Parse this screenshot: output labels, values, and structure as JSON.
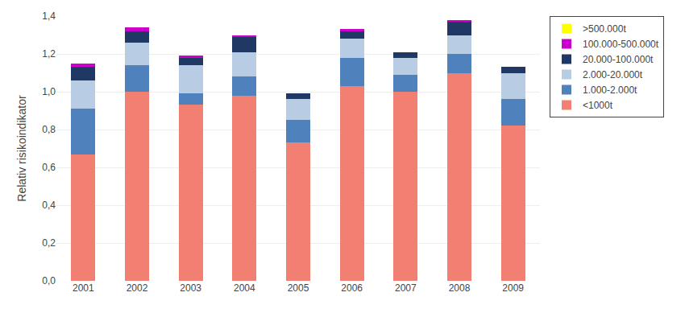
{
  "chart_data": {
    "type": "bar",
    "stacked": true,
    "categories": [
      "2001",
      "2002",
      "2003",
      "2004",
      "2005",
      "2006",
      "2007",
      "2008",
      "2009"
    ],
    "series": [
      {
        "name": "<1000t",
        "color": "#F28072",
        "values": [
          0.67,
          1.0,
          0.93,
          0.98,
          0.73,
          1.03,
          1.0,
          1.1,
          0.82
        ]
      },
      {
        "name": "1.000-2.000t",
        "color": "#4F81BD",
        "values": [
          0.24,
          0.14,
          0.06,
          0.1,
          0.12,
          0.15,
          0.09,
          0.1,
          0.14
        ]
      },
      {
        "name": "2.000-20.000t",
        "color": "#B8CCE4",
        "values": [
          0.15,
          0.12,
          0.15,
          0.13,
          0.11,
          0.1,
          0.09,
          0.1,
          0.14
        ]
      },
      {
        "name": "20.000-100.000t",
        "color": "#1F3864",
        "values": [
          0.07,
          0.06,
          0.04,
          0.08,
          0.03,
          0.04,
          0.03,
          0.07,
          0.03
        ]
      },
      {
        "name": "100.000-500.000t",
        "color": "#CC00CC",
        "values": [
          0.02,
          0.02,
          0.01,
          0.01,
          0.0,
          0.01,
          0.0,
          0.01,
          0.0
        ]
      },
      {
        "name": ">500.000t",
        "color": "#FFFF00",
        "values": [
          0.0,
          0.0,
          0.0,
          0.0,
          0.0,
          0.0,
          0.0,
          0.0,
          0.0
        ]
      }
    ],
    "ylabel": "Relativ risikoindikator",
    "ylim": [
      0,
      1.4
    ],
    "yticks": [
      {
        "value": 0.0,
        "label": "0,0"
      },
      {
        "value": 0.2,
        "label": "0,2"
      },
      {
        "value": 0.4,
        "label": "0,4"
      },
      {
        "value": 0.6,
        "label": "0,6"
      },
      {
        "value": 0.8,
        "label": "0,8"
      },
      {
        "value": 1.0,
        "label": "1,0"
      },
      {
        "value": 1.2,
        "label": "1,2"
      },
      {
        "value": 1.4,
        "label": "1,4"
      }
    ],
    "grid": true,
    "legend": "right"
  }
}
